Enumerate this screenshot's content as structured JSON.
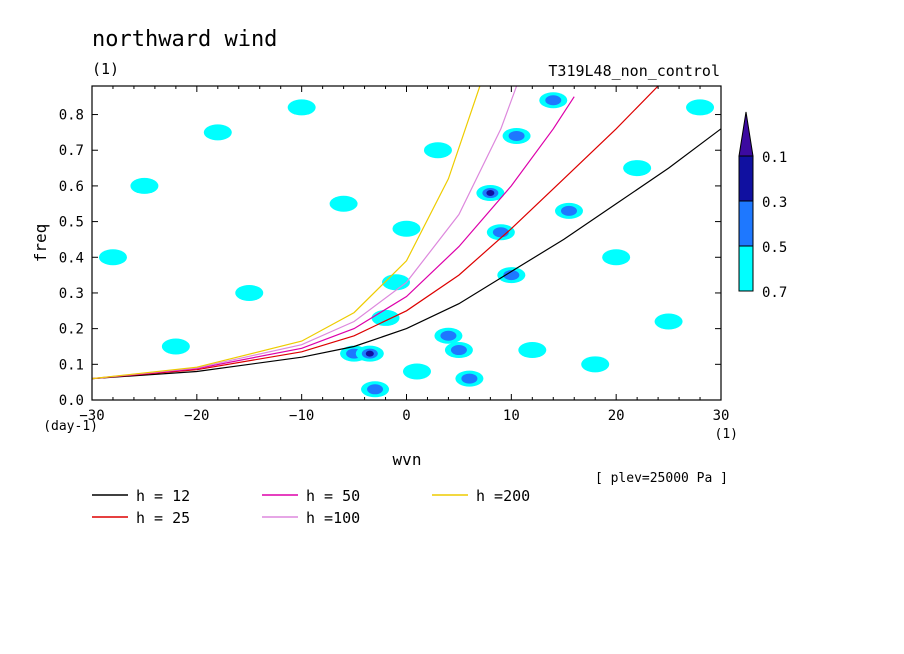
{
  "chart_data": {
    "type": "heatmap",
    "title": "northward wind",
    "title_unit": "(1)",
    "subtitle_right": "T319L48_non_control",
    "xlabel": "wvn",
    "ylabel": "freq",
    "x_unit": "(1)",
    "y_unit": "(day-1)",
    "annotation": "[ plev=25000 Pa ]",
    "xlim": [
      -30,
      30
    ],
    "ylim": [
      0,
      0.88
    ],
    "x_ticks": [
      -30,
      -20,
      -10,
      0,
      10,
      20,
      30
    ],
    "x_tick_labels": [
      "−30",
      "−20",
      "−10",
      "0",
      "10",
      "20",
      "30"
    ],
    "y_ticks": [
      0,
      0.1,
      0.2,
      0.3,
      0.4,
      0.5,
      0.6,
      0.7,
      0.8
    ],
    "y_tick_labels": [
      "0.0",
      "0.1",
      "0.2",
      "0.3",
      "0.4",
      "0.5",
      "0.6",
      "0.7",
      "0.8"
    ],
    "colorbar": {
      "levels": [
        "0.1",
        "0.3",
        "0.5",
        "0.7"
      ],
      "colors": [
        "#00ffff",
        "#1e78ff",
        "#1010a0",
        "#3c0aa0"
      ]
    },
    "series": [
      {
        "name": "h = 12",
        "color": "#000000",
        "x": [
          -30,
          -20,
          -10,
          -5,
          0,
          5,
          10,
          15,
          20,
          25,
          30
        ],
        "y": [
          0.06,
          0.08,
          0.12,
          0.15,
          0.2,
          0.27,
          0.36,
          0.45,
          0.55,
          0.65,
          0.76
        ]
      },
      {
        "name": "h = 25",
        "color": "#dd0000",
        "x": [
          -30,
          -20,
          -10,
          -5,
          0,
          5,
          10,
          15,
          20,
          24
        ],
        "y": [
          0.06,
          0.085,
          0.135,
          0.18,
          0.25,
          0.35,
          0.48,
          0.62,
          0.76,
          0.88
        ]
      },
      {
        "name": "h = 50",
        "color": "#dd00aa",
        "x": [
          -30,
          -20,
          -10,
          -5,
          0,
          5,
          10,
          14,
          16
        ],
        "y": [
          0.06,
          0.088,
          0.145,
          0.2,
          0.29,
          0.43,
          0.6,
          0.76,
          0.85
        ]
      },
      {
        "name": "h =100",
        "color": "#dd88dd",
        "x": [
          -30,
          -20,
          -10,
          -5,
          0,
          5,
          9,
          10.5
        ],
        "y": [
          0.06,
          0.09,
          0.155,
          0.22,
          0.33,
          0.52,
          0.76,
          0.88
        ]
      },
      {
        "name": "h =200",
        "color": "#eecc00",
        "x": [
          -30,
          -20,
          -10,
          -5,
          0,
          4,
          7
        ],
        "y": [
          0.06,
          0.092,
          0.165,
          0.245,
          0.39,
          0.62,
          0.88
        ]
      }
    ],
    "heatmap_patches": [
      {
        "x": -3,
        "y": 0.03,
        "level": 2
      },
      {
        "x": -5,
        "y": 0.13,
        "level": 2
      },
      {
        "x": -3.5,
        "y": 0.13,
        "level": 3
      },
      {
        "x": 4,
        "y": 0.18,
        "level": 2
      },
      {
        "x": 6,
        "y": 0.06,
        "level": 2
      },
      {
        "x": 5,
        "y": 0.14,
        "level": 2
      },
      {
        "x": 8,
        "y": 0.58,
        "level": 3
      },
      {
        "x": 9,
        "y": 0.47,
        "level": 2
      },
      {
        "x": 10,
        "y": 0.35,
        "level": 2
      },
      {
        "x": 10.5,
        "y": 0.74,
        "level": 2
      },
      {
        "x": 14,
        "y": 0.84,
        "level": 2
      },
      {
        "x": 15.5,
        "y": 0.53,
        "level": 2
      },
      {
        "x": -1,
        "y": 0.33,
        "level": 1
      },
      {
        "x": -2,
        "y": 0.23,
        "level": 1
      },
      {
        "x": 1,
        "y": 0.08,
        "level": 1
      },
      {
        "x": -18,
        "y": 0.75,
        "level": 1
      },
      {
        "x": -25,
        "y": 0.6,
        "level": 1
      },
      {
        "x": -10,
        "y": 0.82,
        "level": 1
      },
      {
        "x": 12,
        "y": 0.14,
        "level": 1
      },
      {
        "x": 20,
        "y": 0.4,
        "level": 1
      },
      {
        "x": 25,
        "y": 0.22,
        "level": 1
      },
      {
        "x": -15,
        "y": 0.3,
        "level": 1
      },
      {
        "x": 3,
        "y": 0.7,
        "level": 1
      },
      {
        "x": -6,
        "y": 0.55,
        "level": 1
      },
      {
        "x": 22,
        "y": 0.65,
        "level": 1
      },
      {
        "x": -28,
        "y": 0.4,
        "level": 1
      },
      {
        "x": 18,
        "y": 0.1,
        "level": 1
      },
      {
        "x": -22,
        "y": 0.15,
        "level": 1
      },
      {
        "x": 28,
        "y": 0.82,
        "level": 1
      },
      {
        "x": 0,
        "y": 0.48,
        "level": 1
      }
    ]
  },
  "legend": [
    {
      "label": "h = 12",
      "color": "#000000"
    },
    {
      "label": "h = 25",
      "color": "#dd0000"
    },
    {
      "label": "h = 50",
      "color": "#dd00aa"
    },
    {
      "label": "h =100",
      "color": "#dd88dd"
    },
    {
      "label": "h =200",
      "color": "#eecc00"
    }
  ]
}
